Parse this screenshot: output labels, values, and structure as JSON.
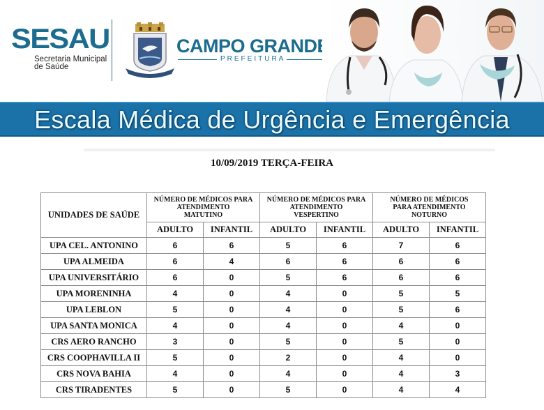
{
  "header": {
    "sesau_logo": "SESAU",
    "sesau_subtitle_line1": "Secretaria Municipal",
    "sesau_subtitle_line2": "de Saúde",
    "city_logo": "CAMPO GRANDE",
    "city_subtitle": "PREFEITURA",
    "brand_color": "#1b6c8f"
  },
  "title_bar": {
    "text": "Escala Médica de Urgência e Emergência",
    "bg_color": "#1a72a9"
  },
  "date_line": "10/09/2019 TERÇA-FEIRA",
  "table": {
    "unit_header": "UNIDADES DE SAÚDE",
    "shifts": [
      {
        "line1": "NÚMERO DE MÉDICOS PARA",
        "line2": "ATENDIMENTO",
        "line3": "MATUTINO"
      },
      {
        "line1": "NÚMERO DE MÉDICOS PARA",
        "line2": "ATENDIMENTO",
        "line3": "VESPERTINO"
      },
      {
        "line1": "NÚMERO DE MÉDICOS",
        "line2": "PARA ATENDIMENTO",
        "line3": "NOTURNO"
      }
    ],
    "sub_headers": [
      "ADULTO",
      "INFANTIL",
      "ADULTO",
      "INFANTIL",
      "ADULTO",
      "INFANTIL"
    ],
    "rows": [
      {
        "name": "UPA CEL. ANTONINO",
        "values": [
          "6",
          "6",
          "5",
          "6",
          "7",
          "6"
        ]
      },
      {
        "name": "UPA ALMEIDA",
        "values": [
          "6",
          "4",
          "6",
          "6",
          "6",
          "6"
        ]
      },
      {
        "name": "UPA UNIVERSITÁRIO",
        "values": [
          "6",
          "0",
          "5",
          "6",
          "6",
          "6"
        ]
      },
      {
        "name": "UPA MORENINHA",
        "values": [
          "4",
          "0",
          "4",
          "0",
          "5",
          "5"
        ]
      },
      {
        "name": "UPA LEBLON",
        "values": [
          "5",
          "0",
          "4",
          "0",
          "5",
          "6"
        ]
      },
      {
        "name": "UPA SANTA MONICA",
        "values": [
          "4",
          "0",
          "4",
          "0",
          "4",
          "0"
        ]
      },
      {
        "name": "CRS AERO RANCHO",
        "values": [
          "3",
          "0",
          "5",
          "0",
          "5",
          "0"
        ]
      },
      {
        "name": "CRS COOPHAVILLA II",
        "values": [
          "5",
          "0",
          "2",
          "0",
          "4",
          "0"
        ]
      },
      {
        "name": "CRS NOVA BAHIA",
        "values": [
          "4",
          "0",
          "4",
          "0",
          "4",
          "3"
        ]
      },
      {
        "name": "CRS TIRADENTES",
        "values": [
          "5",
          "0",
          "5",
          "0",
          "4",
          "4"
        ]
      }
    ]
  }
}
